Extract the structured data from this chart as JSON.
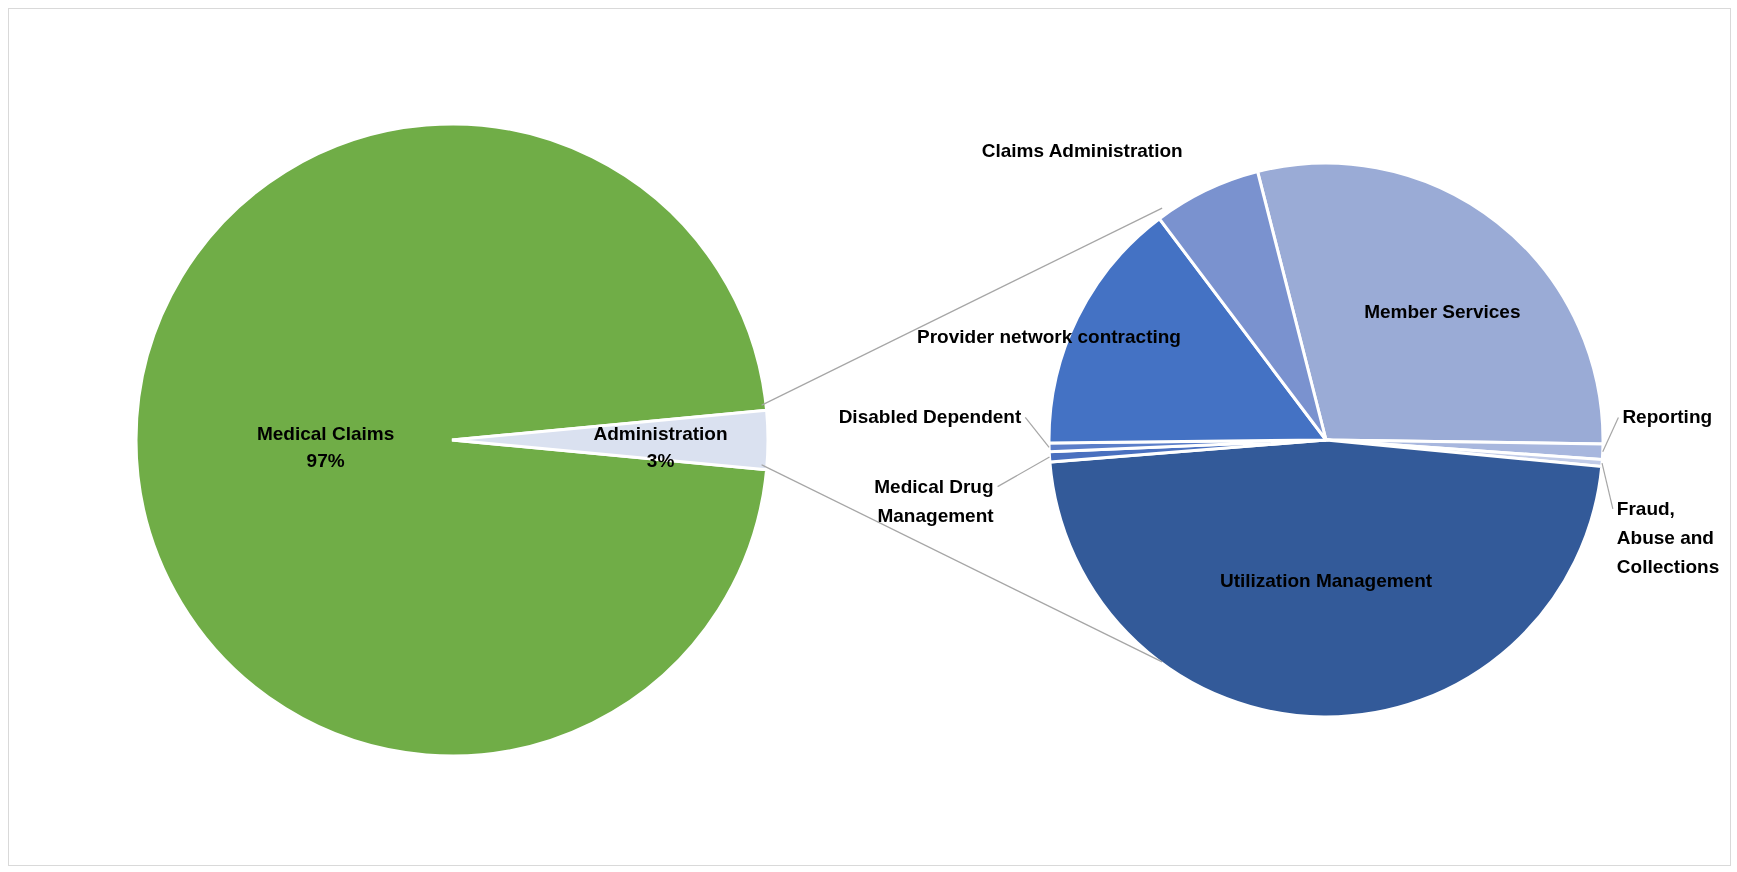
{
  "chart_data": [
    {
      "type": "pie",
      "categories": [
        "Medical Claims",
        "Administration"
      ],
      "values": [
        97,
        3
      ],
      "value_labels": [
        "97%",
        "3%"
      ],
      "colors": [
        "#70ad47",
        "#dae1f0"
      ]
    },
    {
      "type": "pie",
      "categories": [
        "Member Services",
        "Reporting",
        "Fraud, Abuse and Collections",
        "Utilization Management",
        "Medical Drug Management",
        "Disabled Dependent",
        "Provider network contracting",
        "Claims Administration"
      ],
      "values": [
        29.2,
        0.9,
        0.4,
        47.2,
        0.6,
        0.5,
        14.9,
        6.3
      ],
      "colors": [
        "#9aabd6",
        "#a8b7de",
        "#c2cce8",
        "#335a99",
        "#4a70bf",
        "#5b7ec9",
        "#4472c4",
        "#7a92cf"
      ]
    }
  ]
}
